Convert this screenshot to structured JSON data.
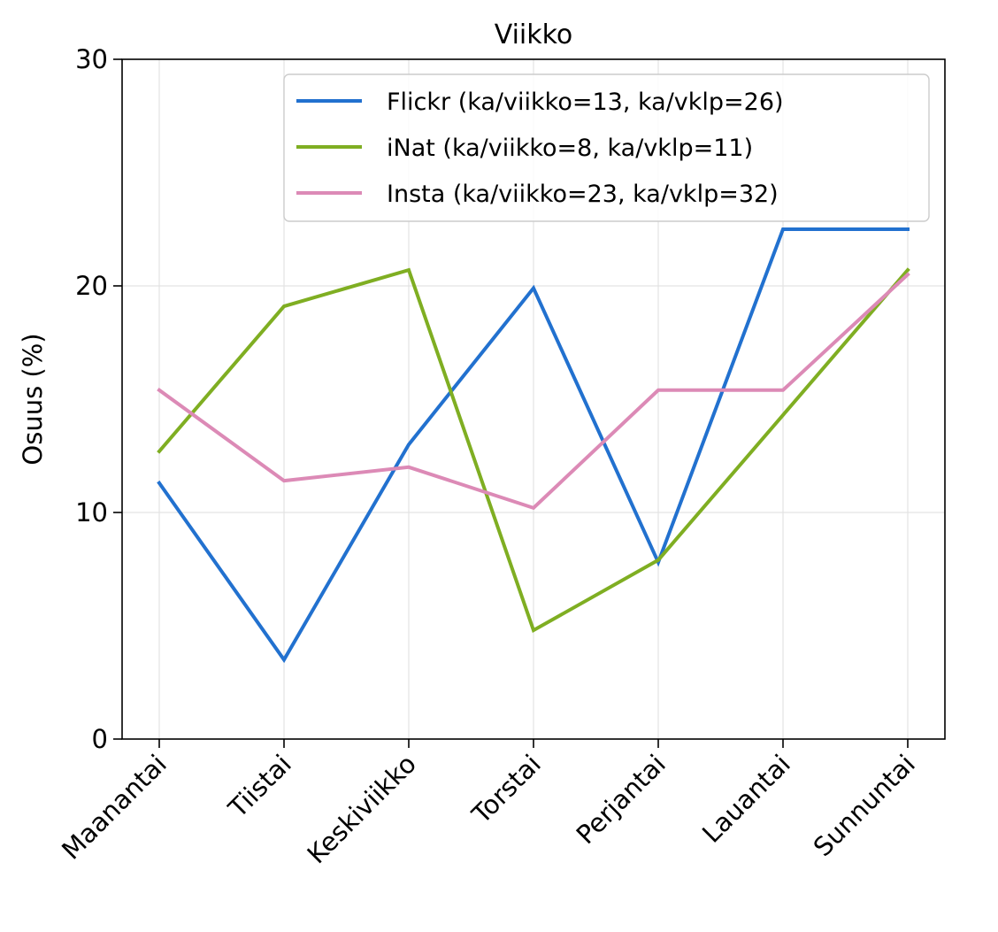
{
  "chart_data": {
    "type": "line",
    "title": "Viikko",
    "xlabel": "",
    "ylabel": "Osuus (%)",
    "ylim": [
      0,
      30
    ],
    "yticks": [
      0,
      10,
      20,
      30
    ],
    "grid": true,
    "legend_position": "top-right",
    "categories": [
      "Maanantai",
      "Tiistai",
      "Keskiviikko",
      "Torstai",
      "Perjantai",
      "Lauantai",
      "Sunnuntai"
    ],
    "series": [
      {
        "name": "Flickr (ka/viikko=13, ka/vklp=26)",
        "color": "#2271cf",
        "values": [
          11.3,
          3.5,
          13.0,
          19.9,
          7.8,
          22.5,
          22.5
        ]
      },
      {
        "name": "iNat (ka/viikko=8, ka/vklp=11)",
        "color": "#7fae22",
        "values": [
          12.7,
          19.1,
          20.7,
          4.8,
          7.9,
          14.3,
          20.7
        ]
      },
      {
        "name": "Insta (ka/viikko=23, ka/vklp=32)",
        "color": "#dc8ab6",
        "values": [
          15.4,
          11.4,
          12.0,
          10.2,
          15.4,
          15.4,
          20.5
        ]
      }
    ]
  }
}
